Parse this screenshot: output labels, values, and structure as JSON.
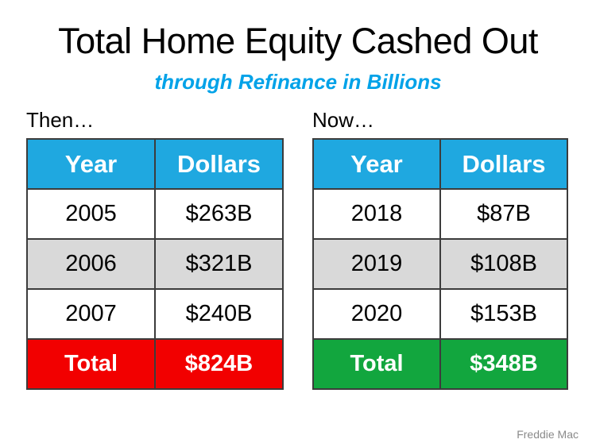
{
  "slide": {
    "title": "Total Home Equity Cashed Out",
    "subtitle": "through Refinance in Billions",
    "source": "Freddie Mac"
  },
  "colors": {
    "header_blue": "#1FA8E0",
    "subtitle_cyan": "#00A2E8",
    "row_alt_gray": "#D9D9D9",
    "total_red": "#F20000",
    "total_green": "#12A63E",
    "cell_border": "#3C3C3C",
    "source_gray": "#8A8A8A"
  },
  "tables": [
    {
      "label": "Then…",
      "headers": [
        "Year",
        "Dollars"
      ],
      "rows": [
        [
          "2005",
          "$263B"
        ],
        [
          "2006",
          "$321B"
        ],
        [
          "2007",
          "$240B"
        ]
      ],
      "total": {
        "label": "Total",
        "value": "$824B",
        "color": "#F20000"
      }
    },
    {
      "label": "Now…",
      "headers": [
        "Year",
        "Dollars"
      ],
      "rows": [
        [
          "2018",
          "$87B"
        ],
        [
          "2019",
          "$108B"
        ],
        [
          "2020",
          "$153B"
        ]
      ],
      "total": {
        "label": "Total",
        "value": "$348B",
        "color": "#12A63E"
      }
    }
  ],
  "chart_data": [
    {
      "type": "table",
      "title": "Then…",
      "columns": [
        "Year",
        "Dollars ($B)"
      ],
      "rows": [
        [
          2005,
          263
        ],
        [
          2006,
          321
        ],
        [
          2007,
          240
        ]
      ],
      "total_row": {
        "label": "Total",
        "value": 824
      },
      "unit": "billions of dollars"
    },
    {
      "type": "table",
      "title": "Now…",
      "columns": [
        "Year",
        "Dollars ($B)"
      ],
      "rows": [
        [
          2018,
          87
        ],
        [
          2019,
          108
        ],
        [
          2020,
          153
        ]
      ],
      "total_row": {
        "label": "Total",
        "value": 348
      },
      "unit": "billions of dollars"
    }
  ]
}
